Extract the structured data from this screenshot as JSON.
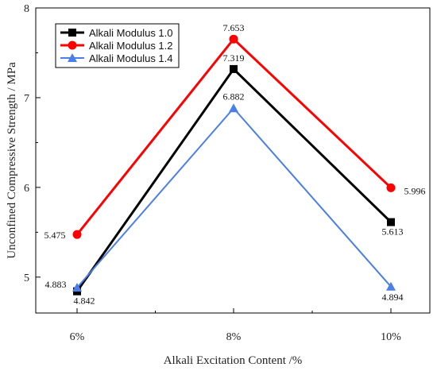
{
  "chart_data": {
    "type": "line",
    "title": "",
    "xlabel": "Alkali Excitation Content /%",
    "ylabel": "Unconfined Compressive Strength / MPa",
    "categories": [
      "6%",
      "8%",
      "10%"
    ],
    "ylim": [
      4.6,
      8
    ],
    "yticks": [
      5,
      6,
      7,
      8
    ],
    "grid": false,
    "legend": "top-left",
    "series": [
      {
        "name": "Alkali Modulus 1.0",
        "values": [
          4.842,
          7.319,
          5.613
        ],
        "color": "#000000",
        "marker": "square"
      },
      {
        "name": "Alkali Modulus 1.2",
        "values": [
          5.475,
          7.653,
          5.996
        ],
        "color": "#ff0000",
        "marker": "circle"
      },
      {
        "name": "Alkali Modulus 1.4",
        "values": [
          4.883,
          6.882,
          4.894
        ],
        "color": "#4a7fe8",
        "marker": "triangle"
      }
    ]
  }
}
